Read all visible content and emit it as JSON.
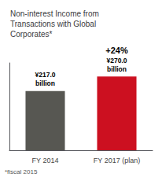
{
  "chart_data": {
    "type": "bar",
    "title": "Non-interest Income from\nTransactions with Global\nCorporates*",
    "categories": [
      "FY 2014",
      "FY 2017 (plan)"
    ],
    "values": [
      217.0,
      270.0
    ],
    "value_labels": [
      "¥217.0\nbillion",
      "¥270.0\nbillion"
    ],
    "data_labels": true,
    "colors": [
      "#575752",
      "#cc1020"
    ],
    "ylim": [
      0,
      320
    ],
    "grid": false,
    "tick_labels": "x",
    "annotations": [
      {
        "text": "+24%",
        "category": "FY 2017 (plan)"
      },
      {
        "text": "*fiscal 2015"
      }
    ]
  }
}
